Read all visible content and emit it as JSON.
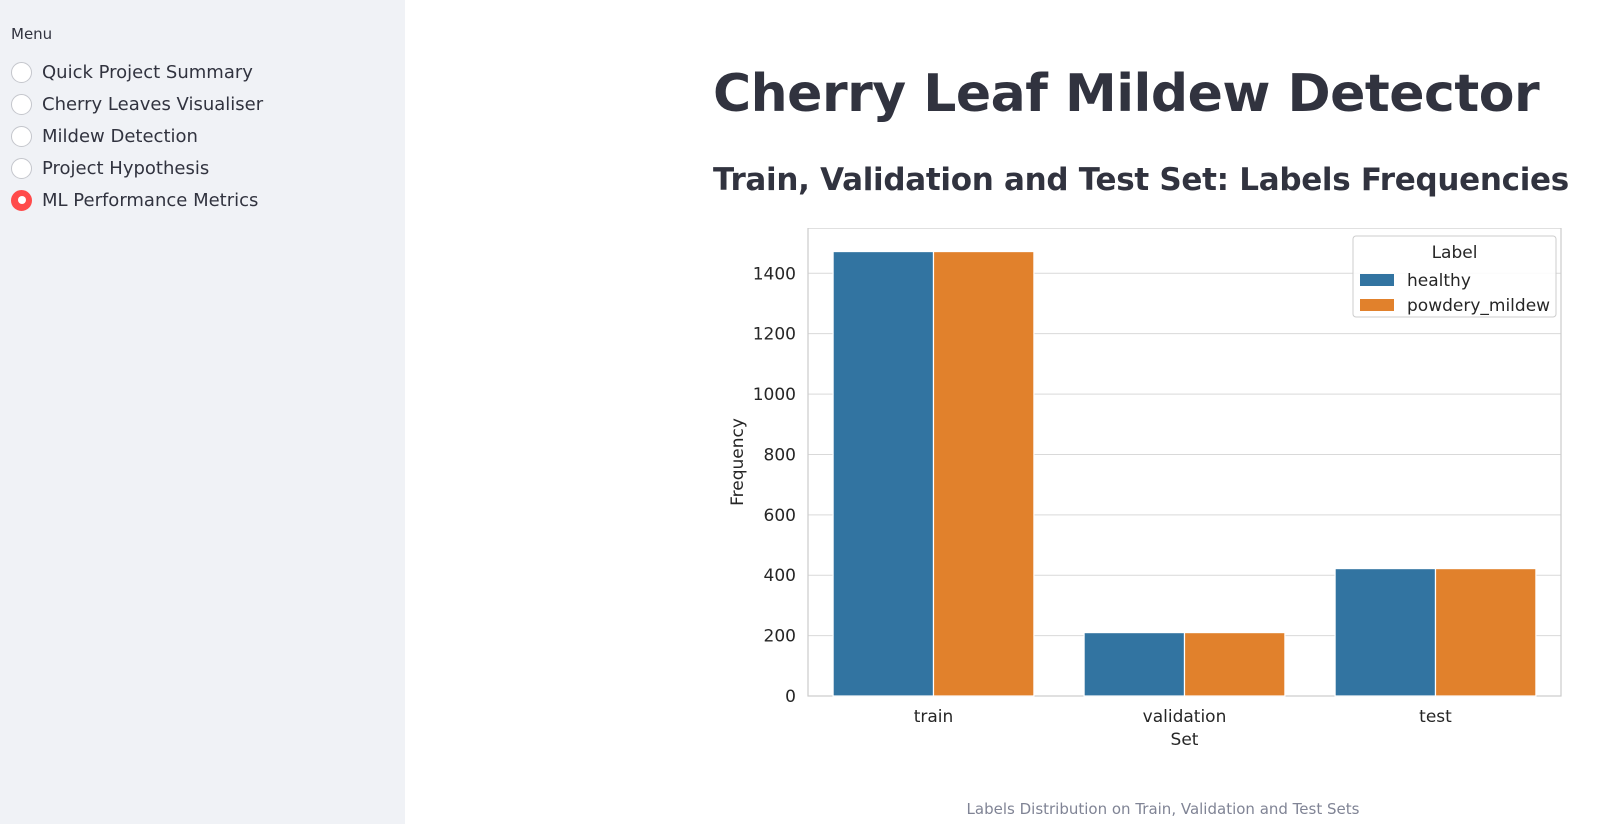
{
  "sidebar": {
    "menu_label": "Menu",
    "items": [
      {
        "label": "Quick Project Summary",
        "selected": false
      },
      {
        "label": "Cherry Leaves Visualiser",
        "selected": false
      },
      {
        "label": "Mildew Detection",
        "selected": false
      },
      {
        "label": "Project Hypothesis",
        "selected": false
      },
      {
        "label": "ML Performance Metrics",
        "selected": true
      }
    ]
  },
  "main": {
    "title": "Cherry Leaf Mildew Detector",
    "section_title": "Train, Validation and Test Set: Labels Frequencies",
    "caption": "Labels Distribution on Train, Validation and Test Sets"
  },
  "colors": {
    "accent": "#ff4b4b",
    "healthy": "#3274a1",
    "powdery_mildew": "#e1812c"
  },
  "chart_data": {
    "type": "bar",
    "categories": [
      "train",
      "validation",
      "test"
    ],
    "series": [
      {
        "name": "healthy",
        "values": [
          1472,
          210,
          422
        ]
      },
      {
        "name": "powdery_mildew",
        "values": [
          1472,
          210,
          422
        ]
      }
    ],
    "xlabel": "Set",
    "ylabel": "Frequency",
    "ylim": [
      0,
      1550
    ],
    "yticks": [
      0,
      200,
      400,
      600,
      800,
      1000,
      1200,
      1400
    ],
    "legend_title": "Label",
    "legend_position": "top-right",
    "grid": true
  }
}
